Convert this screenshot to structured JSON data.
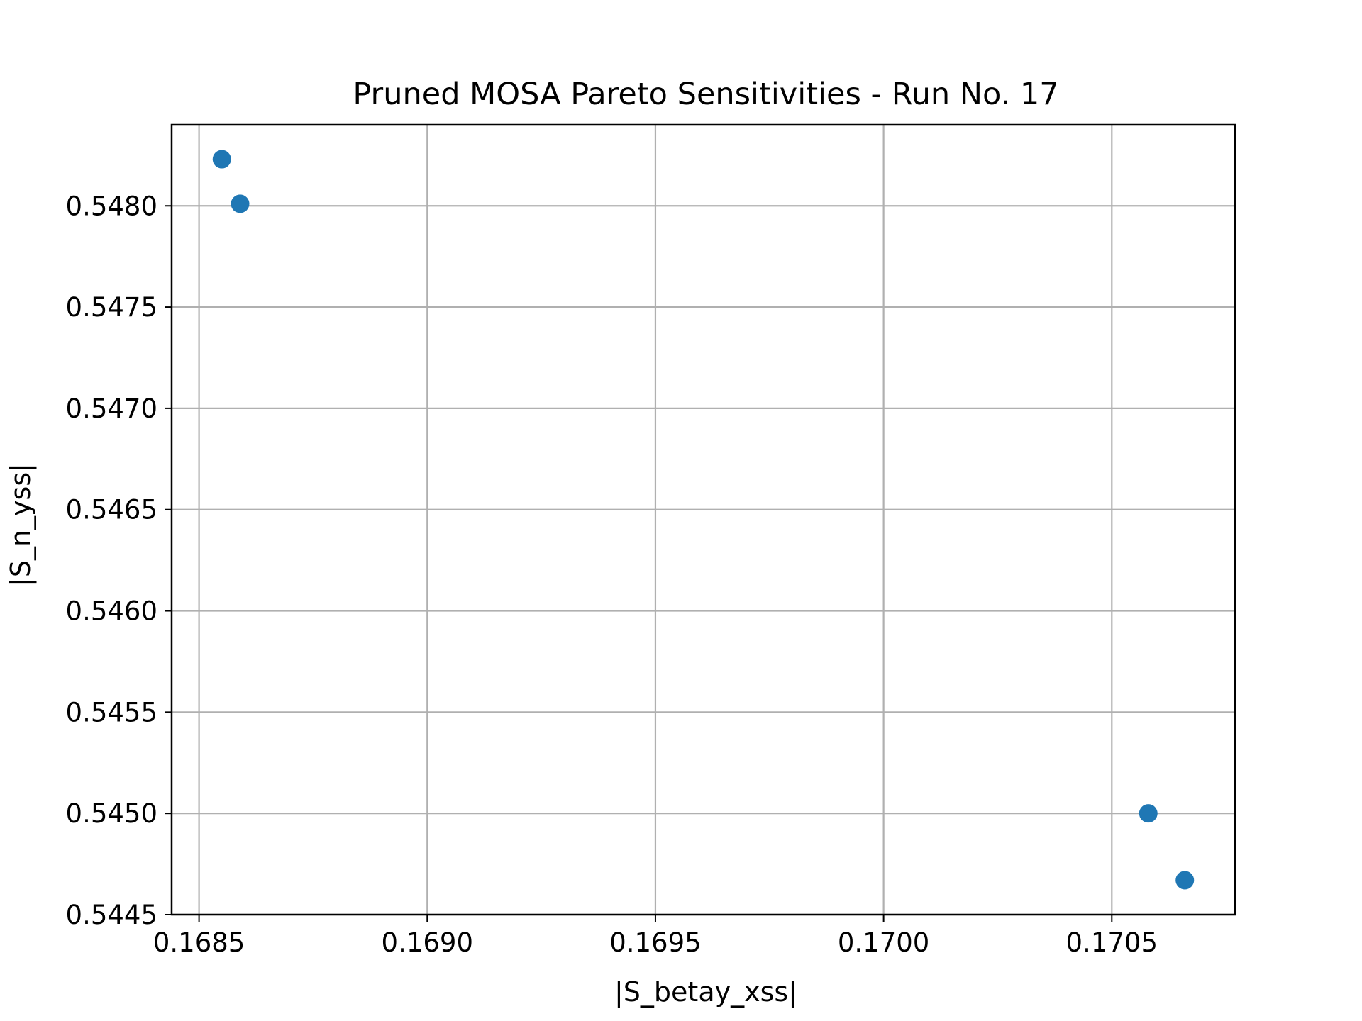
{
  "chart_data": {
    "type": "scatter",
    "title": "Pruned MOSA Pareto Sensitivities - Run No. 17",
    "xlabel": "|S_betay_xss|",
    "ylabel": "|S_n_yss|",
    "xlim": [
      0.16844,
      0.17077
    ],
    "ylim": [
      0.5445,
      0.5484
    ],
    "x_ticks": [
      0.1685,
      0.169,
      0.1695,
      0.17,
      0.1705
    ],
    "x_tick_labels": [
      "0.1685",
      "0.1690",
      "0.1695",
      "0.1700",
      "0.1705"
    ],
    "y_ticks": [
      0.5445,
      0.545,
      0.5455,
      0.546,
      0.5465,
      0.547,
      0.5475,
      0.548
    ],
    "y_tick_labels": [
      "0.5445",
      "0.5450",
      "0.5455",
      "0.5460",
      "0.5465",
      "0.5470",
      "0.5475",
      "0.5480"
    ],
    "grid": true,
    "color": "#1f77b4",
    "points": [
      {
        "x": 0.16855,
        "y": 0.54823
      },
      {
        "x": 0.16859,
        "y": 0.54801
      },
      {
        "x": 0.17058,
        "y": 0.545
      },
      {
        "x": 0.17066,
        "y": 0.54467
      }
    ]
  }
}
